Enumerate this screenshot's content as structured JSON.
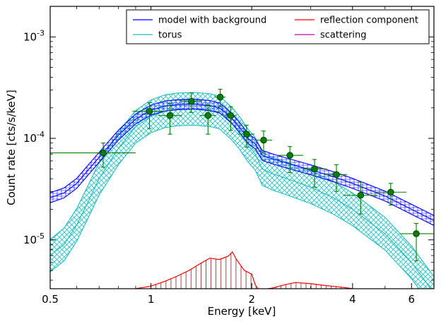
{
  "chart_data": {
    "type": "line",
    "xlabel": "Energy [keV]",
    "ylabel": "Count rate [cts/s/keV]",
    "x_scale": "log",
    "y_scale": "log",
    "xlim": [
      0.5,
      7.0
    ],
    "ylim": [
      3.3e-06,
      0.002
    ],
    "x_ticks": [
      {
        "value": 0.5,
        "label": "0.5"
      },
      {
        "value": 1,
        "label": "1"
      },
      {
        "value": 2,
        "label": "2"
      },
      {
        "value": 4,
        "label": "4"
      },
      {
        "value": 6,
        "label": "6"
      }
    ],
    "y_ticks": [
      {
        "value": 1e-05,
        "base": "10",
        "exp": "-5"
      },
      {
        "value": 0.0001,
        "base": "10",
        "exp": "-4"
      },
      {
        "value": 0.001,
        "base": "10",
        "exp": "-3"
      }
    ],
    "legend": {
      "position": "top-right",
      "entries": [
        {
          "label": "model with background",
          "color": "#0000ff"
        },
        {
          "label": "reflection component",
          "color": "#ff0000"
        },
        {
          "label": "torus",
          "color": "#1fbfbf"
        },
        {
          "label": "scattering",
          "color": "#bf00bf"
        }
      ]
    },
    "colors": {
      "model": "#0000ff",
      "torus": "#1fbfbf",
      "reflection": "#ff0000",
      "reflection_fill": "#8b1a1a",
      "data": "#008000",
      "data_edge": "#004000"
    },
    "series": [
      {
        "name": "model with background",
        "color": "#0000ff",
        "x": [
          0.5,
          0.55,
          0.6,
          0.7,
          0.8,
          0.9,
          1.0,
          1.1,
          1.2,
          1.35,
          1.5,
          1.6,
          1.65,
          1.75,
          1.85,
          1.95,
          2.05,
          2.15,
          2.3,
          2.5,
          3.0,
          3.5,
          4.0,
          5.0,
          6.0,
          7.0
        ],
        "y": [
          2.6e-05,
          2.9e-05,
          3.6e-05,
          6.5e-05,
          0.000108,
          0.000155,
          0.00019,
          0.000208,
          0.000215,
          0.000218,
          0.00021,
          0.0002,
          0.000185,
          0.000155,
          0.000125,
          0.0001,
          8.8e-05,
          6.8e-05,
          6.3e-05,
          5.8e-05,
          4.9e-05,
          4.2e-05,
          3.6e-05,
          2.7e-05,
          2e-05,
          1.55e-05
        ],
        "band_factor": 1.12
      },
      {
        "name": "torus",
        "color": "#1fbfbf",
        "x": [
          0.5,
          0.55,
          0.6,
          0.65,
          0.7,
          0.8,
          0.9,
          1.0,
          1.1,
          1.2,
          1.35,
          1.5,
          1.6,
          1.65,
          1.75,
          1.85,
          1.95,
          2.05,
          2.15,
          2.3,
          2.5,
          3.0,
          3.5,
          4.0,
          5.0,
          6.0,
          7.0
        ],
        "y": [
          7e-06,
          9e-06,
          1.4e-05,
          2.4e-05,
          4e-05,
          8e-05,
          0.00013,
          0.000165,
          0.000185,
          0.000193,
          0.000195,
          0.00019,
          0.00018,
          0.000165,
          0.000138,
          0.00011,
          8.5e-05,
          7e-05,
          5e-05,
          4.5e-05,
          4.1e-05,
          3.3e-05,
          2.6e-05,
          2e-05,
          1.15e-05,
          6e-06,
          3e-06
        ],
        "band_factor": 1.45
      },
      {
        "name": "reflection component",
        "color": "#ff0000",
        "x": [
          0.9,
          1.0,
          1.1,
          1.2,
          1.3,
          1.4,
          1.5,
          1.6,
          1.7,
          1.75,
          1.8,
          1.9,
          2.0,
          2.05,
          2.1,
          2.3,
          2.5,
          2.7,
          3.0,
          3.3,
          3.6,
          3.9,
          4.2
        ],
        "y": [
          3.3e-06,
          3.5e-06,
          3.9e-06,
          4.4e-06,
          5e-06,
          5.8e-06,
          6.6e-06,
          6.4e-06,
          6.9e-06,
          7.6e-06,
          6.4e-06,
          5e-06,
          4.6e-06,
          3.6e-06,
          3.2e-06,
          3.35e-06,
          3.6e-06,
          3.8e-06,
          3.7e-06,
          3.55e-06,
          3.45e-06,
          3.35e-06,
          3.2e-06
        ]
      }
    ],
    "data_points": [
      {
        "x": 0.72,
        "y": 7.2e-05,
        "xerr": [
          0.5,
          0.9
        ],
        "yerr": [
          5.2e-05,
          9e-05
        ]
      },
      {
        "x": 0.99,
        "y": 0.000185,
        "xerr": [
          0.88,
          1.1
        ],
        "yerr": [
          0.000125,
          0.000225
        ]
      },
      {
        "x": 1.14,
        "y": 0.000168,
        "xerr": [
          1.05,
          1.24
        ],
        "yerr": [
          0.00011,
          0.00022
        ]
      },
      {
        "x": 1.32,
        "y": 0.000232,
        "xerr": [
          1.22,
          1.42
        ],
        "yerr": [
          0.00018,
          0.00028
        ]
      },
      {
        "x": 1.48,
        "y": 0.000168,
        "xerr": [
          1.4,
          1.56
        ],
        "yerr": [
          0.00011,
          0.000215
        ]
      },
      {
        "x": 1.61,
        "y": 0.000255,
        "xerr": [
          1.55,
          1.67
        ],
        "yerr": [
          0.000205,
          0.000305
        ]
      },
      {
        "x": 1.73,
        "y": 0.000168,
        "xerr": [
          1.66,
          1.8
        ],
        "yerr": [
          0.00012,
          0.000205
        ]
      },
      {
        "x": 1.93,
        "y": 0.00011,
        "xerr": [
          1.82,
          2.04
        ],
        "yerr": [
          8.2e-05,
          0.000135
        ]
      },
      {
        "x": 2.17,
        "y": 9.6e-05,
        "xerr": [
          2.05,
          2.3
        ],
        "yerr": [
          7.3e-05,
          0.000118
        ]
      },
      {
        "x": 2.6,
        "y": 6.8e-05,
        "xerr": [
          2.4,
          2.85
        ],
        "yerr": [
          4.6e-05,
          8.3e-05
        ]
      },
      {
        "x": 3.08,
        "y": 5e-05,
        "xerr": [
          2.85,
          3.35
        ],
        "yerr": [
          3.3e-05,
          6.2e-05
        ]
      },
      {
        "x": 3.58,
        "y": 4.4e-05,
        "xerr": [
          3.3,
          3.85
        ],
        "yerr": [
          3e-05,
          5.5e-05
        ]
      },
      {
        "x": 4.23,
        "y": 2.75e-05,
        "xerr": [
          3.75,
          4.75
        ],
        "yerr": [
          1.8e-05,
          3.7e-05
        ]
      },
      {
        "x": 5.2,
        "y": 2.95e-05,
        "xerr": [
          4.65,
          5.8
        ],
        "yerr": [
          2.2e-05,
          3.6e-05
        ]
      },
      {
        "x": 6.2,
        "y": 1.15e-05,
        "xerr": [
          5.55,
          7.0
        ],
        "yerr": [
          6.2e-06,
          1.45e-05
        ]
      }
    ]
  }
}
